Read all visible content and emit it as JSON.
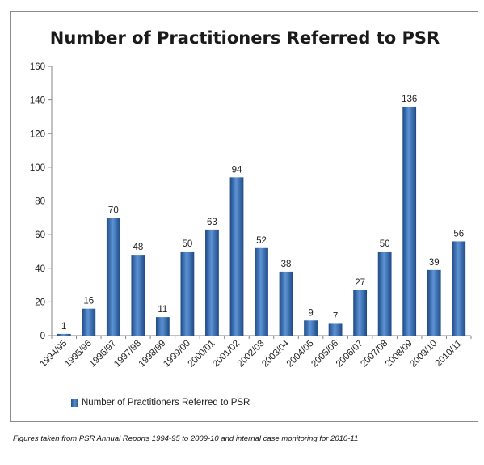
{
  "chart_data": {
    "type": "bar",
    "title": "Number of Practitioners Referred to PSR",
    "categories": [
      "1994/95",
      "1995/96",
      "1996/97",
      "1997/98",
      "1998/99",
      "1999/00",
      "2000/01",
      "2001/02",
      "2002/03",
      "2003/04",
      "2004/05",
      "2005/06",
      "2006/07",
      "2007/08",
      "2008/09",
      "2009/10",
      "2010/11"
    ],
    "series": [
      {
        "name": "Number of Practitioners Referred to PSR",
        "values": [
          1,
          16,
          70,
          48,
          11,
          50,
          63,
          94,
          52,
          38,
          9,
          7,
          27,
          50,
          136,
          39,
          56
        ]
      }
    ],
    "ylim": [
      0,
      160
    ],
    "yticks": [
      0,
      20,
      40,
      60,
      80,
      100,
      120,
      140,
      160
    ],
    "grid": false,
    "legend": "bottom-left",
    "bar_color": "#2f66ae"
  },
  "footnote": "Figures taken from PSR Annual Reports 1994-95 to 2009-10 and internal case monitoring for 2010-11"
}
